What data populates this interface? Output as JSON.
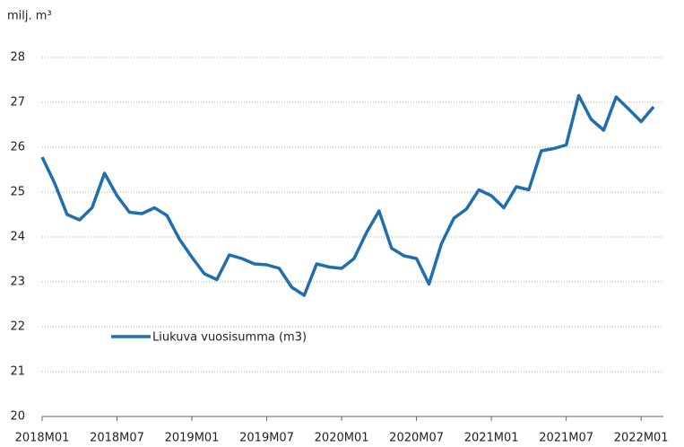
{
  "chart_data": {
    "type": "line",
    "y_axis_label": "milj. m³",
    "categories": [
      "2018M01",
      null,
      null,
      null,
      null,
      null,
      "2018M07",
      null,
      null,
      null,
      null,
      null,
      "2019M01",
      null,
      null,
      null,
      null,
      null,
      "2019M07",
      null,
      null,
      null,
      null,
      null,
      "2020M01",
      null,
      null,
      null,
      null,
      null,
      "2020M07",
      null,
      null,
      null,
      null,
      null,
      "2021M01",
      null,
      null,
      null,
      null,
      null,
      "2021M07",
      null,
      null,
      null,
      null,
      null,
      "2022M01",
      null
    ],
    "series": [
      {
        "name": "Liukuva vuosisumma (m3)",
        "color": "#1f6fb0",
        "values": [
          25.78,
          25.2,
          24.5,
          24.38,
          24.65,
          25.42,
          24.92,
          24.55,
          24.52,
          24.65,
          24.48,
          23.95,
          23.55,
          23.18,
          23.05,
          23.6,
          23.52,
          23.4,
          23.38,
          23.3,
          22.88,
          22.7,
          23.4,
          23.33,
          23.3,
          23.52,
          24.1,
          24.58,
          23.75,
          23.58,
          23.52,
          22.95,
          23.85,
          24.42,
          24.62,
          25.05,
          24.92,
          24.65,
          25.12,
          25.05,
          25.92,
          25.97,
          26.05,
          27.15,
          26.62,
          26.38,
          27.12,
          26.85,
          26.57,
          26.9
        ]
      }
    ],
    "ylim": [
      20,
      28
    ],
    "yticks": [
      20,
      21,
      22,
      23,
      24,
      25,
      26,
      27,
      28
    ],
    "grid": true
  }
}
